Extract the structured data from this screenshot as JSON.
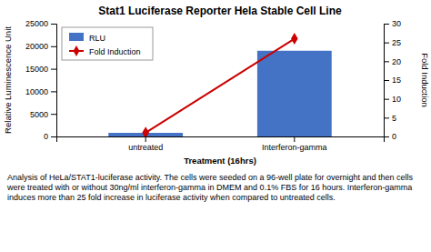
{
  "chart_data": {
    "type": "bar",
    "title": "Stat1 Luciferase Reporter Hela Stable Cell Line",
    "xlabel": "Treatment (16hrs)",
    "ylabel": "Relative Luminescence Unit",
    "y2label": "Fold Induction",
    "categories": [
      "untreated",
      "Interferon-gamma"
    ],
    "series": [
      {
        "name": "RLU",
        "type": "bar",
        "color": "#4472C4",
        "values": [
          800,
          19000
        ]
      },
      {
        "name": "Fold Induction",
        "type": "line",
        "color": "#CC0000",
        "marker": "diamond",
        "axis": "y2",
        "values": [
          1,
          26
        ]
      }
    ],
    "ylim": [
      0,
      25000
    ],
    "yticks": [
      0,
      5000,
      10000,
      15000,
      20000,
      25000
    ],
    "y2lim": [
      0,
      30
    ],
    "y2ticks": [
      0,
      5,
      10,
      15,
      20,
      25,
      30
    ],
    "legend": "upper-left",
    "caption": "Analysis of HeLa/STAT1-luciferase activity. The cells were seeded on a 96-well plate for overnight and then cells were treated with or without 30ng/ml interferon-gamma in DMEM and 0.1% FBS for 16 hours. Interferon-gamma induces more than 25 fold increase in luciferase activity when compared to untreated cells."
  }
}
